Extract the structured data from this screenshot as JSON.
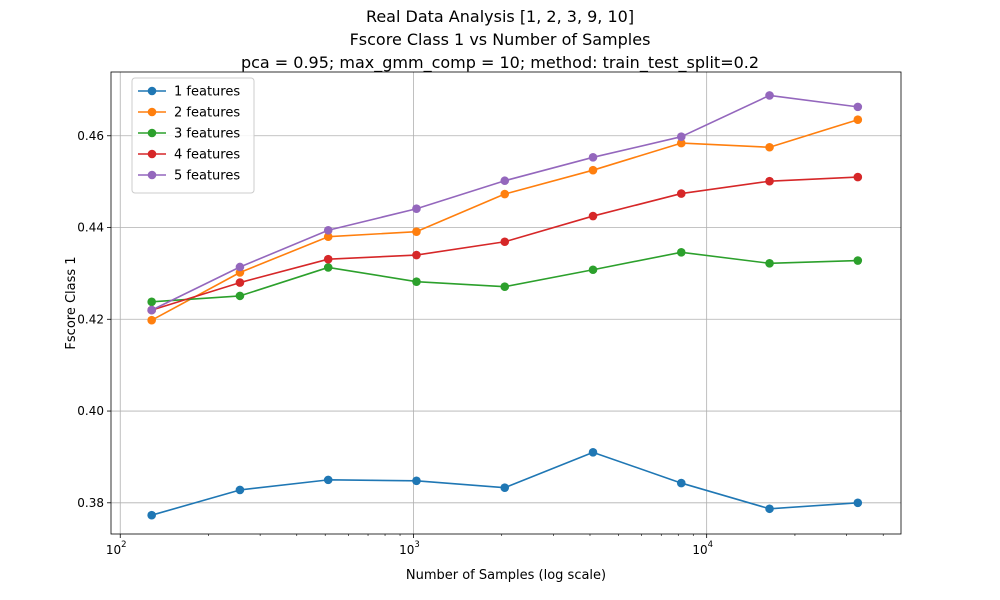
{
  "chart_data": {
    "type": "line",
    "title_lines": [
      "Real Data Analysis [1, 2, 3, 9, 10]",
      "Fscore Class 1 vs Number of Samples",
      "pca = 0.95; max_gmm_comp = 10; method: train_test_split=0.2"
    ],
    "xlabel": "Number of Samples (log scale)",
    "ylabel": "Fscore Class 1",
    "x_scale": "log",
    "xlim": [
      93,
      46000
    ],
    "ylim": [
      0.3732,
      0.4739
    ],
    "x_ticks": [
      {
        "value": 100,
        "base": "10",
        "exp": "2"
      },
      {
        "value": 1000,
        "base": "10",
        "exp": "3"
      },
      {
        "value": 10000,
        "base": "10",
        "exp": "4"
      }
    ],
    "y_ticks": [
      {
        "value": 0.38,
        "label": "0.38"
      },
      {
        "value": 0.4,
        "label": "0.40"
      },
      {
        "value": 0.42,
        "label": "0.42"
      },
      {
        "value": 0.44,
        "label": "0.44"
      },
      {
        "value": 0.46,
        "label": "0.46"
      }
    ],
    "grid": true,
    "legend_position": "top-left",
    "x": [
      128,
      256,
      512,
      1024,
      2048,
      4096,
      8192,
      16384,
      32768
    ],
    "series": [
      {
        "name": "1 features",
        "color": "#1f77b4",
        "values": [
          0.3773,
          0.3828,
          0.385,
          0.3848,
          0.3833,
          0.391,
          0.3843,
          0.3787,
          0.38
        ]
      },
      {
        "name": "2 features",
        "color": "#ff7f0e",
        "values": [
          0.4198,
          0.4302,
          0.438,
          0.4391,
          0.4473,
          0.4525,
          0.4584,
          0.4575,
          0.4635
        ]
      },
      {
        "name": "3 features",
        "color": "#2ca02c",
        "values": [
          0.4238,
          0.4251,
          0.4313,
          0.4282,
          0.4271,
          0.4308,
          0.4346,
          0.4322,
          0.4328
        ]
      },
      {
        "name": "4 features",
        "color": "#d62728",
        "values": [
          0.422,
          0.428,
          0.4331,
          0.434,
          0.4369,
          0.4425,
          0.4474,
          0.4501,
          0.451
        ]
      },
      {
        "name": "5 features",
        "color": "#9467bd",
        "values": [
          0.422,
          0.4314,
          0.4394,
          0.4441,
          0.4502,
          0.4553,
          0.4598,
          0.4688,
          0.4663
        ]
      }
    ]
  }
}
